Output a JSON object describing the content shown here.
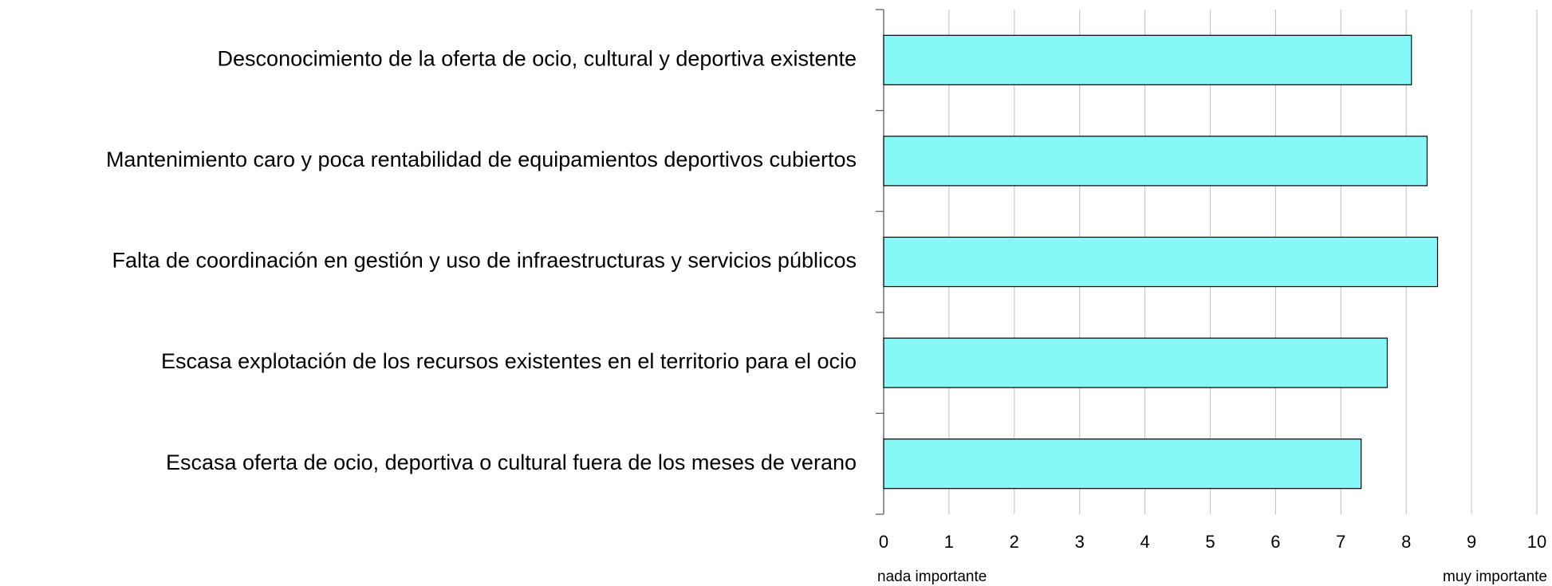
{
  "chart_data": {
    "type": "bar",
    "orientation": "horizontal",
    "categories": [
      "Desconocimiento de la oferta de ocio, cultural y deportiva existente",
      "Mantenimiento caro y poca rentabilidad de equipamientos deportivos cubiertos",
      "Falta de coordinación en gestión y uso de infraestructuras y servicios públicos",
      "Escasa explotación de los recursos existentes en el territorio para el ocio",
      "Escasa oferta de ocio, deportiva o cultural fuera de los meses de verano"
    ],
    "values": [
      8.08,
      8.32,
      8.48,
      7.71,
      7.31
    ],
    "color": "#87f8f8",
    "xlim": [
      0,
      10
    ],
    "xticks": [
      0,
      1,
      2,
      3,
      4,
      5,
      6,
      7,
      8,
      9,
      10
    ],
    "grid": true,
    "annotations": [
      "nada importante",
      "muy importante"
    ]
  }
}
